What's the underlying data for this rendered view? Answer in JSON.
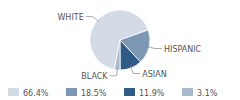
{
  "chart_data": {
    "type": "pie",
    "categories": [
      "WHITE",
      "HISPANIC",
      "ASIAN",
      "BLACK"
    ],
    "values": [
      66.4,
      18.5,
      11.9,
      3.1
    ],
    "value_labels": [
      "66.4%",
      "18.5%",
      "11.9%",
      "3.1%"
    ],
    "colors": [
      "#d3dbe6",
      "#7d97b4",
      "#2f5b85",
      "#aabbd0"
    ],
    "legend": "bottom"
  }
}
